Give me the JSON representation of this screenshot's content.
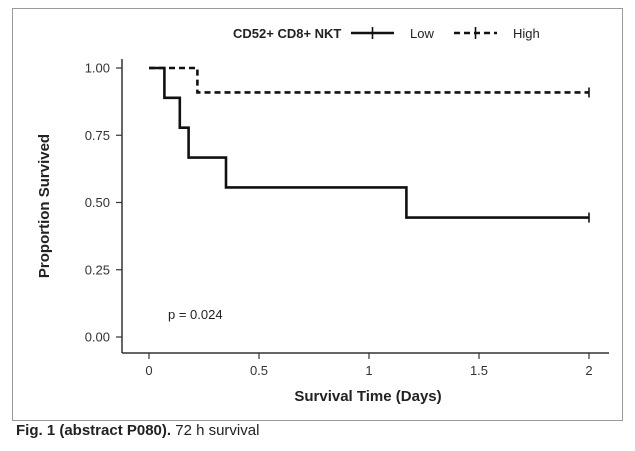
{
  "chart_data": {
    "type": "line",
    "subtype": "kaplan-meier step",
    "title": "",
    "xlabel": "Survival Time (Days)",
    "ylabel": "Proportion Survived",
    "xlim": [
      0,
      2
    ],
    "ylim": [
      0,
      1
    ],
    "xticks": [
      "0",
      "0.5",
      "1",
      "1.5",
      "2"
    ],
    "yticks": [
      "0.00",
      "0.25",
      "0.50",
      "0.75",
      "1.00"
    ],
    "xtick_values": [
      0,
      0.5,
      1,
      1.5,
      2
    ],
    "ytick_values": [
      0,
      0.25,
      0.5,
      0.75,
      1
    ],
    "grid": false,
    "legend": {
      "title": "CD52+ CD8+ NKT",
      "position": "top",
      "entries": [
        "Low",
        "High"
      ]
    },
    "annotation": "p = 0.024",
    "series": [
      {
        "name": "Low",
        "line_style": "solid",
        "color": "#111111",
        "steps": [
          {
            "x": 0,
            "y": 1.0
          },
          {
            "x": 0.07,
            "y": 0.889
          },
          {
            "x": 0.14,
            "y": 0.778
          },
          {
            "x": 0.18,
            "y": 0.667
          },
          {
            "x": 0.35,
            "y": 0.556
          },
          {
            "x": 1.17,
            "y": 0.444
          }
        ],
        "end_x": 2.0,
        "censor_marks": [
          {
            "x": 2.0,
            "y": 0.444
          }
        ]
      },
      {
        "name": "High",
        "line_style": "dashed",
        "color": "#111111",
        "steps": [
          {
            "x": 0,
            "y": 1.0
          },
          {
            "x": 0.22,
            "y": 0.909
          }
        ],
        "end_x": 2.0,
        "censor_marks": [
          {
            "x": 2.0,
            "y": 0.909
          }
        ]
      }
    ]
  },
  "caption": {
    "label": "Fig. 1 (abstract P080).",
    "text": " 72 h survival"
  }
}
